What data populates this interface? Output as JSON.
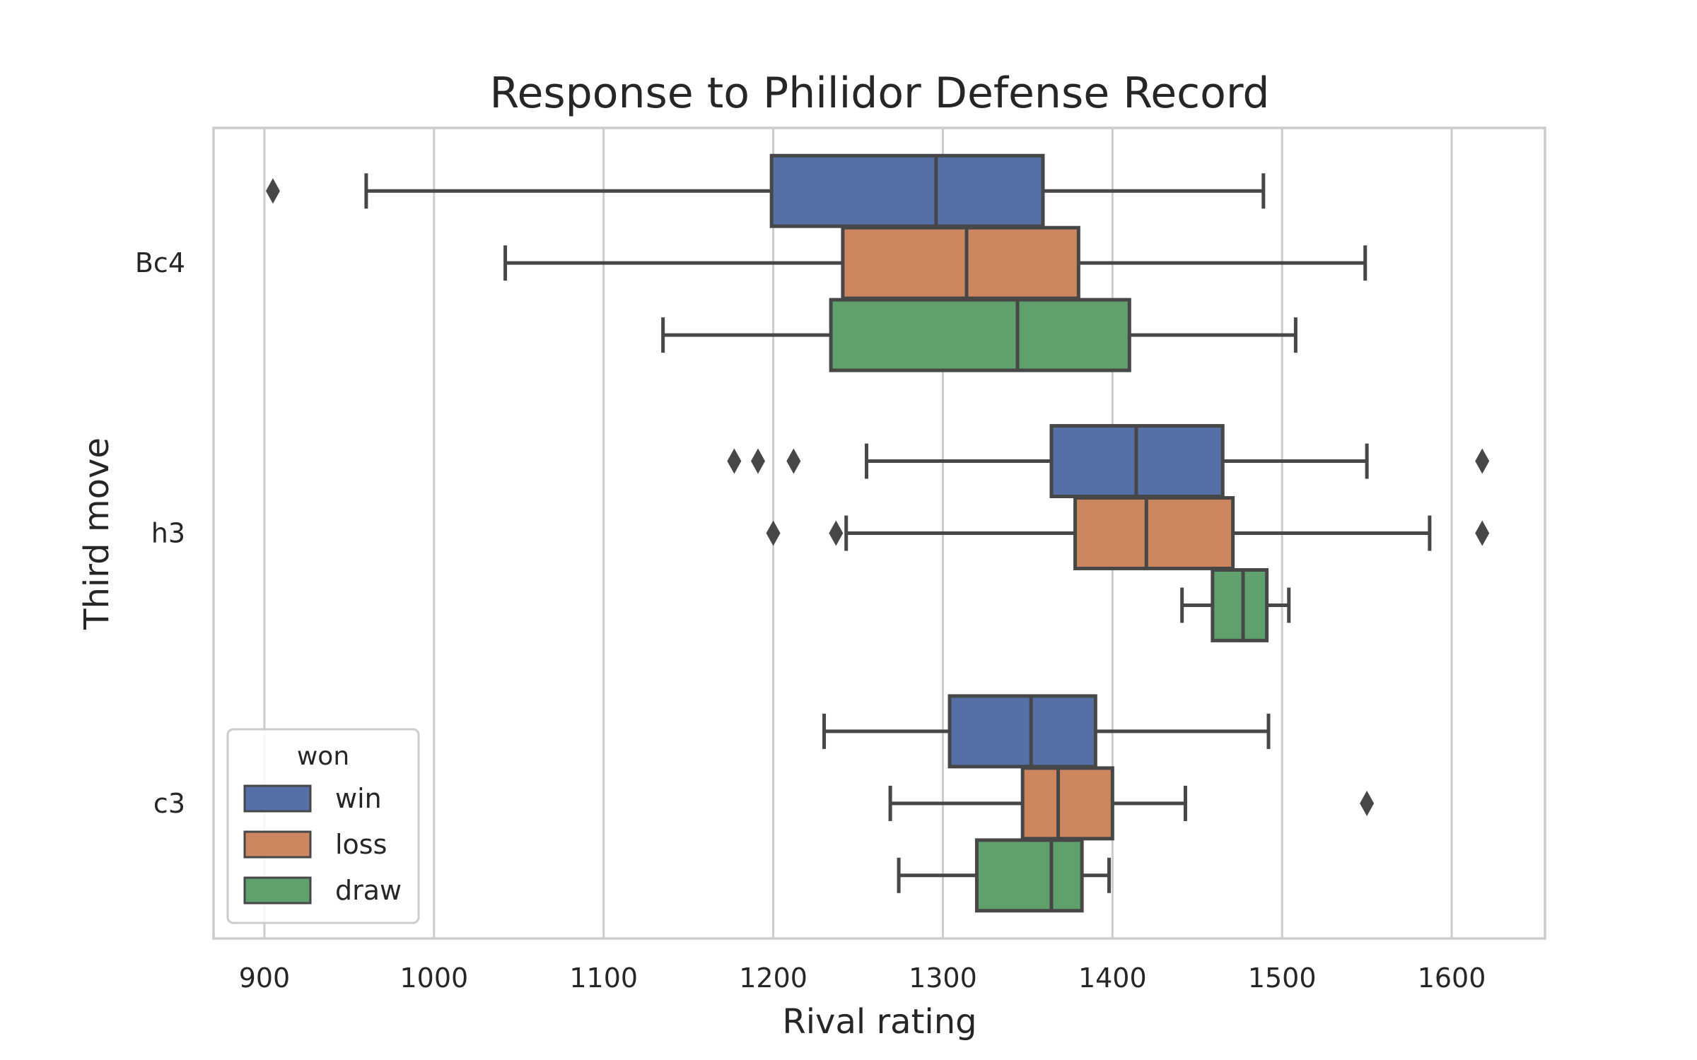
{
  "chart_data": {
    "type": "boxplot",
    "orientation": "horizontal",
    "title": "Response to Philidor Defense Record",
    "xlabel": "Rival rating",
    "ylabel": "Third move",
    "xlim": [
      870,
      1655
    ],
    "xticks": [
      900,
      1000,
      1100,
      1200,
      1300,
      1400,
      1500,
      1600
    ],
    "grid": "vertical",
    "categories": [
      "Bc4",
      "h3",
      "c3"
    ],
    "legend": {
      "title": "won",
      "placement": "lower-left",
      "entries": [
        "win",
        "loss",
        "draw"
      ]
    },
    "series": [
      {
        "name": "win",
        "color": "#5470a6",
        "boxes": [
          {
            "category": "Bc4",
            "whisker_low": 960,
            "q1": 1199,
            "median": 1296,
            "q3": 1359,
            "whisker_high": 1489,
            "outliers": [
              905
            ]
          },
          {
            "category": "h3",
            "whisker_low": 1255,
            "q1": 1364,
            "median": 1414,
            "q3": 1465,
            "whisker_high": 1550,
            "outliers": [
              1177,
              1191,
              1212,
              1618
            ]
          },
          {
            "category": "c3",
            "whisker_low": 1230,
            "q1": 1304,
            "median": 1352,
            "q3": 1390,
            "whisker_high": 1492,
            "outliers": []
          }
        ]
      },
      {
        "name": "loss",
        "color": "#cc8760",
        "boxes": [
          {
            "category": "Bc4",
            "whisker_low": 1042,
            "q1": 1241,
            "median": 1314,
            "q3": 1380,
            "whisker_high": 1549,
            "outliers": []
          },
          {
            "category": "h3",
            "whisker_low": 1243,
            "q1": 1378,
            "median": 1420,
            "q3": 1471,
            "whisker_high": 1587,
            "outliers": [
              1200,
              1237,
              1618
            ]
          },
          {
            "category": "c3",
            "whisker_low": 1269,
            "q1": 1347,
            "median": 1368,
            "q3": 1400,
            "whisker_high": 1443,
            "outliers": [
              1550
            ]
          }
        ]
      },
      {
        "name": "draw",
        "color": "#5fa06d",
        "boxes": [
          {
            "category": "Bc4",
            "whisker_low": 1135,
            "q1": 1234,
            "median": 1344,
            "q3": 1410,
            "whisker_high": 1508,
            "outliers": []
          },
          {
            "category": "h3",
            "whisker_low": 1441,
            "q1": 1459,
            "median": 1477,
            "q3": 1491,
            "whisker_high": 1504,
            "outliers": []
          },
          {
            "category": "c3",
            "whisker_low": 1274,
            "q1": 1320,
            "median": 1364,
            "q3": 1382,
            "whisker_high": 1398,
            "outliers": []
          }
        ]
      }
    ]
  }
}
